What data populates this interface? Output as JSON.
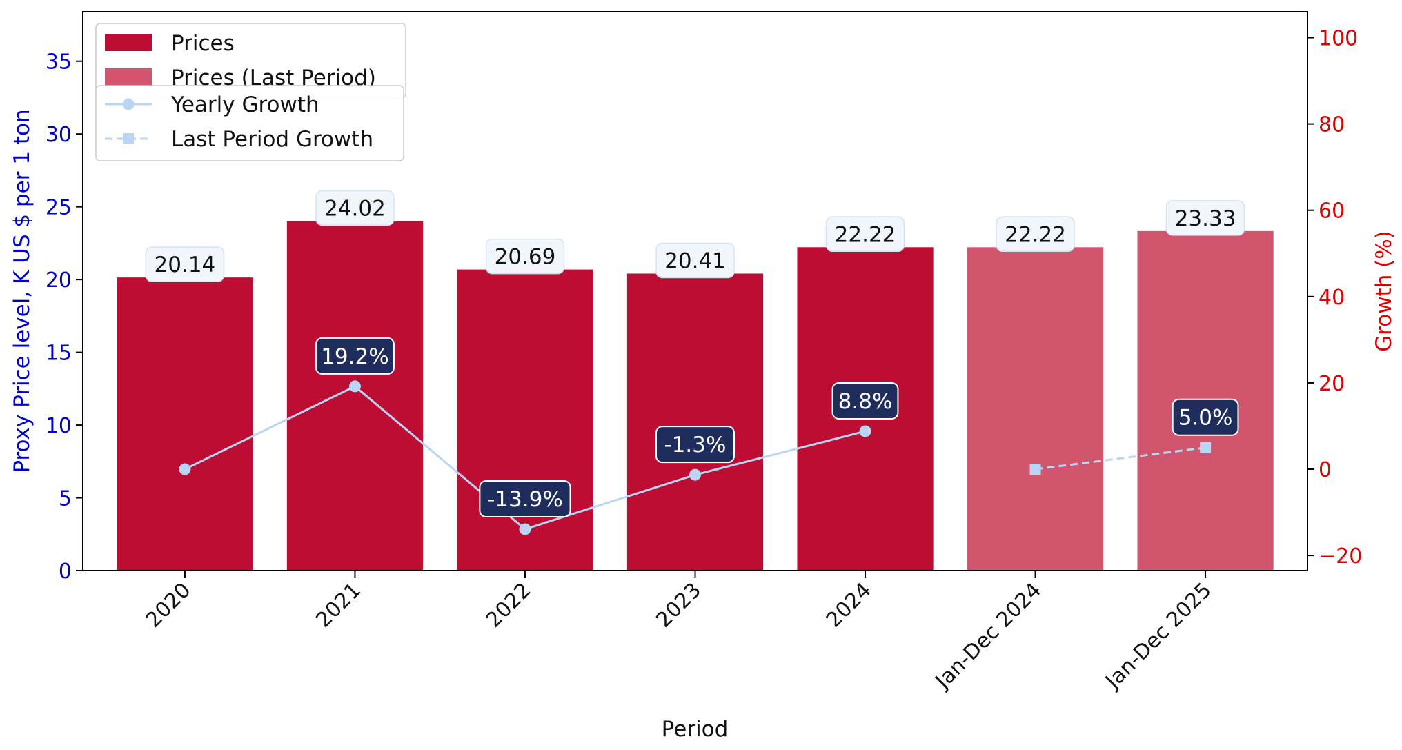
{
  "chart_data": {
    "type": "bar",
    "categories": [
      "2020",
      "2021",
      "2022",
      "2023",
      "2024",
      "Jan-Dec 2024",
      "Jan-Dec 2025"
    ],
    "series": [
      {
        "name": "Prices",
        "kind": "bar",
        "axis": "left",
        "values": [
          20.14,
          24.02,
          20.69,
          20.41,
          22.22,
          null,
          null
        ],
        "labels": [
          "20.14",
          "24.02",
          "20.69",
          "20.41",
          "22.22",
          null,
          null
        ]
      },
      {
        "name": "Prices (Last Period)",
        "kind": "bar",
        "axis": "left",
        "values": [
          null,
          null,
          null,
          null,
          null,
          22.22,
          23.33
        ],
        "labels": [
          null,
          null,
          null,
          null,
          null,
          "22.22",
          "23.33"
        ]
      },
      {
        "name": "Yearly Growth",
        "kind": "line",
        "axis": "right",
        "style": "solid",
        "marker": "circle",
        "values": [
          0,
          19.2,
          -13.9,
          -1.3,
          8.8,
          null,
          null
        ],
        "labels": [
          null,
          "19.2%",
          "-13.9%",
          "-1.3%",
          "8.8%",
          null,
          null
        ]
      },
      {
        "name": "Last Period Growth",
        "kind": "line",
        "axis": "right",
        "style": "dashed",
        "marker": "square",
        "values": [
          null,
          null,
          null,
          null,
          null,
          0,
          5.0
        ],
        "labels": [
          null,
          null,
          null,
          null,
          null,
          null,
          "5.0%"
        ]
      }
    ],
    "title": "",
    "xlabel": "Period",
    "ylabel": "Proxy Price level, K US $ per 1 ton",
    "y2label": "Growth (%)",
    "ylim": [
      0,
      38.4
    ],
    "y2lim": [
      -23.5,
      106
    ],
    "yticks": [
      0,
      5,
      10,
      15,
      20,
      25,
      30,
      35
    ],
    "y2ticks": [
      -20,
      0,
      20,
      40,
      60,
      80,
      100
    ],
    "grid": false,
    "legend_placement": "top-left",
    "colors": {
      "bar": "#bd0d33",
      "bar_last": "#d1556d",
      "line": "#bad6f4",
      "left_axis": "#0000cc",
      "right_axis": "#e00000",
      "growth_label_bg": "#1f2d5c",
      "price_label_bg": "#f0f6fc"
    }
  }
}
